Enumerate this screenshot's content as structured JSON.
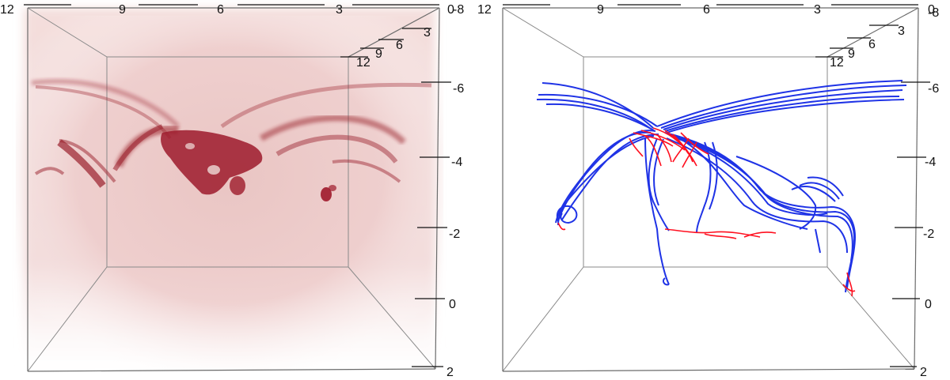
{
  "panels": [
    {
      "id": "left",
      "render": "volume-density",
      "color": "#a0202c",
      "top_axis_ticks": [
        "12",
        "9",
        "6",
        "3",
        "0"
      ],
      "depth_axis_ticks": [
        "3",
        "6",
        "9",
        "12"
      ],
      "right_axis_ticks": [
        "-8",
        "-6",
        "-4",
        "-2",
        "0",
        "2"
      ]
    },
    {
      "id": "right",
      "render": "field-lines",
      "line_colors": {
        "primary": "#1f33e6",
        "secondary": "#ff1020"
      },
      "top_axis_ticks": [
        "12",
        "9",
        "6",
        "3",
        "0"
      ],
      "depth_axis_ticks": [
        "3",
        "6",
        "9",
        "12"
      ],
      "right_axis_ticks": [
        "-8",
        "-6",
        "-4",
        "-2",
        "0",
        "2"
      ]
    }
  ]
}
